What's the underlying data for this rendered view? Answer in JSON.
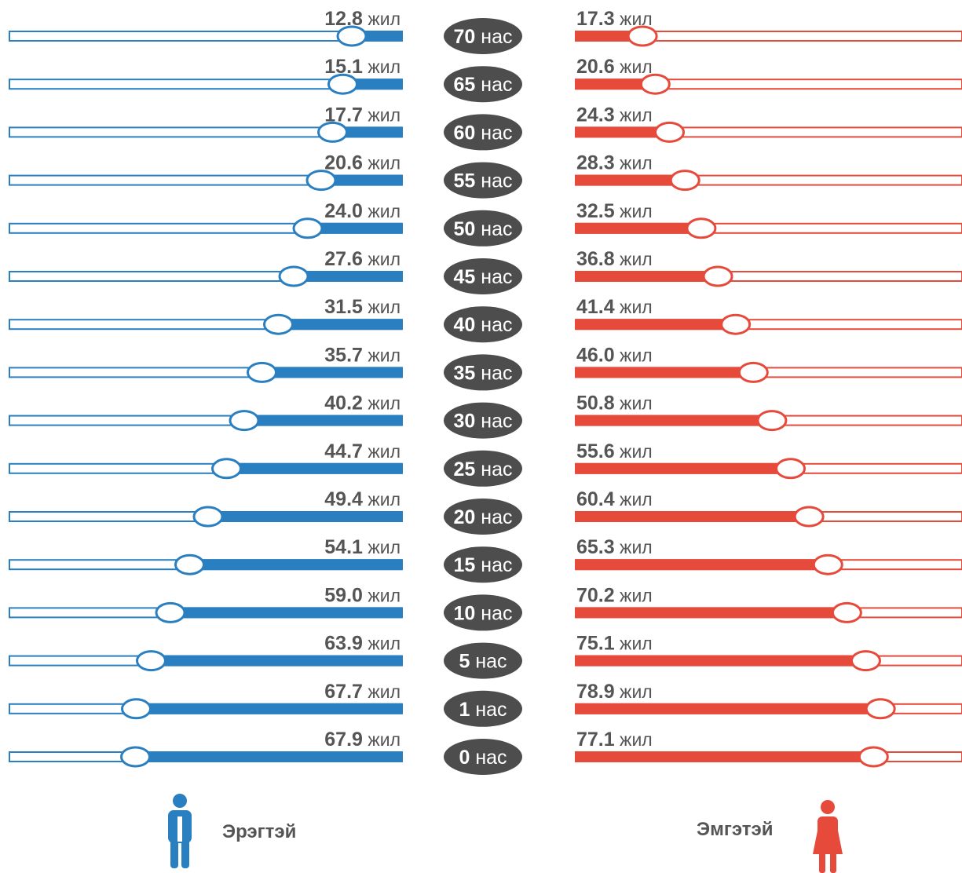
{
  "chart_data": {
    "type": "bar",
    "age_unit": "нас",
    "value_unit": "жил",
    "categories": [
      {
        "age": "70",
        "male": "12.8",
        "female": "17.3"
      },
      {
        "age": "65",
        "male": "15.1",
        "female": "20.6"
      },
      {
        "age": "60",
        "male": "17.7",
        "female": "24.3"
      },
      {
        "age": "55",
        "male": "20.6",
        "female": "28.3"
      },
      {
        "age": "50",
        "male": "24.0",
        "female": "32.5"
      },
      {
        "age": "45",
        "male": "27.6",
        "female": "36.8"
      },
      {
        "age": "40",
        "male": "31.5",
        "female": "41.4"
      },
      {
        "age": "35",
        "male": "35.7",
        "female": "46.0"
      },
      {
        "age": "30",
        "male": "40.2",
        "female": "50.8"
      },
      {
        "age": "25",
        "male": "44.7",
        "female": "55.6"
      },
      {
        "age": "20",
        "male": "49.4",
        "female": "60.4"
      },
      {
        "age": "15",
        "male": "54.1",
        "female": "65.3"
      },
      {
        "age": "10",
        "male": "59.0",
        "female": "70.2"
      },
      {
        "age": "5",
        "male": "63.9",
        "female": "75.1"
      },
      {
        "age": "1",
        "male": "67.7",
        "female": "78.9"
      },
      {
        "age": "0",
        "male": "67.9",
        "female": "77.1"
      }
    ],
    "series": [
      {
        "name": "Эрэгтэй",
        "color": "#2a7fc1"
      },
      {
        "name": "Эмгэтэй",
        "color": "#e64a3b"
      }
    ],
    "scale_max": 100
  },
  "legend": {
    "male_label": "Эрэгтэй",
    "female_label": "Эмгэтэй",
    "male_icon": "male-person-icon",
    "female_icon": "female-person-icon"
  },
  "colors": {
    "male": "#2a7fc1",
    "female": "#e64a3b",
    "age_pill": "#4d4d4d",
    "value_text": "#555555"
  }
}
